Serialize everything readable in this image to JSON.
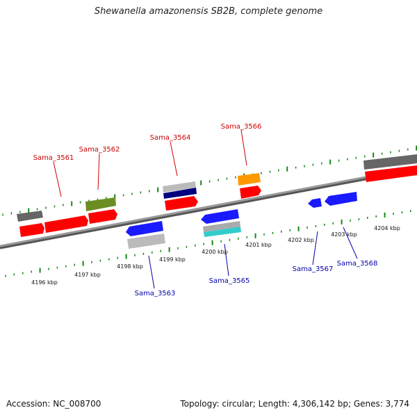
{
  "title": "Shewanella amazonensis SB2B, complete genome",
  "footer": {
    "accession": "Accession: NC_008700",
    "summary": "Topology: circular; Length: 4,306,142 bp; Genes: 3,774"
  },
  "scale_labels": [
    "4196 kbp",
    "4197 kbp",
    "4198 kbp",
    "4199 kbp",
    "4200 kbp",
    "4201 kbp",
    "4202 kbp",
    "4203 kbp",
    "4204 kbp"
  ],
  "genes_top": [
    {
      "label": "Sama_3561",
      "color": "#cc0000"
    },
    {
      "label": "Sama_3562",
      "color": "#cc0000"
    },
    {
      "label": "Sama_3564",
      "color": "#cc0000"
    },
    {
      "label": "Sama_3566",
      "color": "#cc0000"
    }
  ],
  "genes_bottom": [
    {
      "label": "Sama_3563",
      "color": "#0000aa"
    },
    {
      "label": "Sama_3565",
      "color": "#0000aa"
    },
    {
      "label": "Sama_3567",
      "color": "#0000aa"
    },
    {
      "label": "Sama_3568",
      "color": "#0000aa"
    }
  ],
  "colors": {
    "forward_cds": "#ff0000",
    "reverse_cds": "#1a1aff",
    "tick": "#118811",
    "backbone": "#888888",
    "gray": "#666666",
    "light_gray": "#bbbbbb",
    "olive": "#6b8e23",
    "orange": "#ff9900",
    "navy": "#000080",
    "cyan": "#33cccc"
  }
}
